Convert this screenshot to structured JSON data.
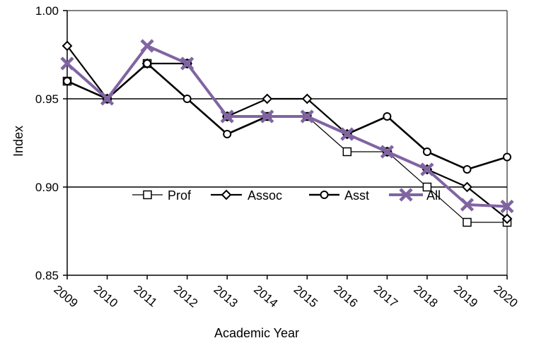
{
  "chart_data": {
    "type": "line",
    "title": "",
    "xlabel": "Academic Year",
    "ylabel": "Index",
    "ylim": [
      0.85,
      1.0
    ],
    "yticks": [
      "0.85",
      "0.90",
      "0.95",
      "1.00"
    ],
    "grid": "horizontal",
    "legend_position": "inside-center",
    "categories": [
      "2009",
      "2010",
      "2011",
      "2012",
      "2013",
      "2014",
      "2015",
      "2016",
      "2017",
      "2018",
      "2019",
      "2020"
    ],
    "series": [
      {
        "name": "Prof",
        "marker": "square",
        "color": "#000000",
        "values": [
          0.96,
          0.95,
          0.97,
          0.97,
          0.94,
          0.94,
          0.94,
          0.92,
          0.92,
          0.9,
          0.88,
          0.88
        ]
      },
      {
        "name": "Assoc",
        "marker": "diamond",
        "color": "#000000",
        "values": [
          0.98,
          0.95,
          0.97,
          0.97,
          0.94,
          0.95,
          0.95,
          0.93,
          0.92,
          0.91,
          0.9,
          0.882
        ]
      },
      {
        "name": "Asst",
        "marker": "circle",
        "color": "#000000",
        "values": [
          0.96,
          0.95,
          0.97,
          0.95,
          0.93,
          0.94,
          0.94,
          0.93,
          0.94,
          0.92,
          0.91,
          0.917
        ]
      },
      {
        "name": "All",
        "marker": "x",
        "color": "#8064a2",
        "values": [
          0.97,
          0.95,
          0.98,
          0.97,
          0.94,
          0.94,
          0.94,
          0.93,
          0.92,
          0.91,
          0.89,
          0.889
        ]
      }
    ]
  }
}
